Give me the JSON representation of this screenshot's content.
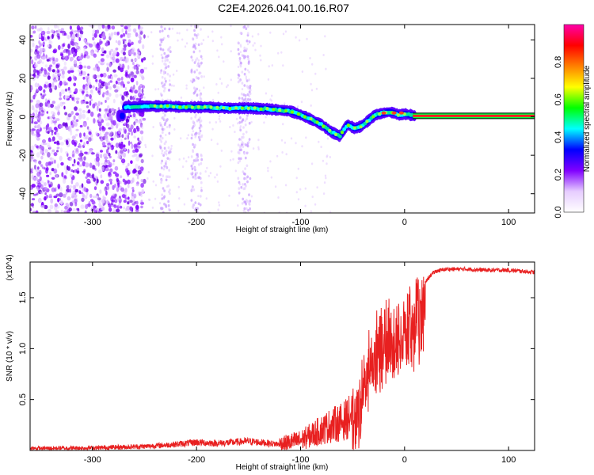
{
  "title": "C2E4.2026.041.00.16.R07",
  "chart_data": [
    {
      "type": "heatmap",
      "xlabel": "Height of straight line (km)",
      "ylabel": "Frequency (Hz)",
      "xlim": [
        -360,
        125
      ],
      "ylim": [
        -50,
        48
      ],
      "x_ticks": [
        -300,
        -200,
        -100,
        0,
        100
      ],
      "x_tick_labels": [
        "-300",
        "-200",
        "-100",
        "0",
        "100"
      ],
      "y_ticks": [
        -40,
        -20,
        0,
        20,
        40
      ],
      "y_tick_labels": [
        "-40",
        "-20",
        "0",
        "20",
        "40"
      ],
      "colorbar": {
        "label": "Normalized spectral amplitude",
        "range": [
          0,
          1
        ],
        "ticks": [
          0.0,
          0.2,
          0.4,
          0.6,
          0.8
        ],
        "tick_labels": [
          "0.0",
          "0.2",
          "0.4",
          "0.6",
          "0.8"
        ],
        "colors": [
          "#ffffff",
          "#e6ccff",
          "#8000ff",
          "#0000ff",
          "#00ffff",
          "#00ff00",
          "#ffff00",
          "#ff8000",
          "#ff0000",
          "#ff00aa"
        ]
      },
      "ridge": {
        "x": [
          -270,
          -250,
          -230,
          -210,
          -190,
          -170,
          -150,
          -130,
          -110,
          -95,
          -80,
          -70,
          -62,
          -55,
          -48,
          -42,
          -35,
          -28,
          -20,
          -15,
          -10,
          -5,
          0,
          5,
          10,
          125
        ],
        "freq": [
          5,
          5.5,
          5.5,
          5,
          5,
          4.5,
          4.5,
          4,
          3,
          0,
          -4,
          -8,
          -10,
          -4,
          -6,
          -5,
          -2,
          1,
          2,
          2.5,
          2,
          1,
          1.5,
          1,
          0.5,
          0.5
        ]
      },
      "noise_band": "x < -250"
    },
    {
      "type": "line",
      "xlabel": "Height of straight line (km)",
      "ylabel": "SNR (10 * v/v)",
      "y_multiplier": "(x10^4)",
      "xlim": [
        -360,
        125
      ],
      "ylim": [
        0,
        1.85
      ],
      "x_ticks": [
        -300,
        -200,
        -100,
        0,
        100
      ],
      "x_tick_labels": [
        "-300",
        "-200",
        "-100",
        "0",
        "100"
      ],
      "y_ticks": [
        0.5,
        1.0,
        1.5
      ],
      "y_tick_labels": [
        "0.5",
        "1.0",
        "1.5"
      ],
      "series": [
        {
          "name": "SNR",
          "color": "#e82020",
          "x": [
            -360,
            -300,
            -250,
            -220,
            -200,
            -180,
            -150,
            -120,
            -100,
            -90,
            -80,
            -70,
            -60,
            -50,
            -45,
            -40,
            -35,
            -30,
            -25,
            -20,
            -15,
            -10,
            -5,
            0,
            5,
            10,
            15,
            20,
            25,
            30,
            40,
            60,
            80,
            100,
            125
          ],
          "values": [
            0.02,
            0.025,
            0.04,
            0.06,
            0.08,
            0.07,
            0.09,
            0.06,
            0.1,
            0.15,
            0.2,
            0.25,
            0.28,
            0.35,
            0.55,
            0.75,
            0.95,
            1.1,
            1.2,
            1.3,
            1.25,
            1.28,
            1.3,
            1.35,
            1.4,
            1.45,
            1.55,
            1.65,
            1.72,
            1.76,
            1.78,
            1.78,
            1.77,
            1.77,
            1.75
          ]
        }
      ]
    }
  ]
}
